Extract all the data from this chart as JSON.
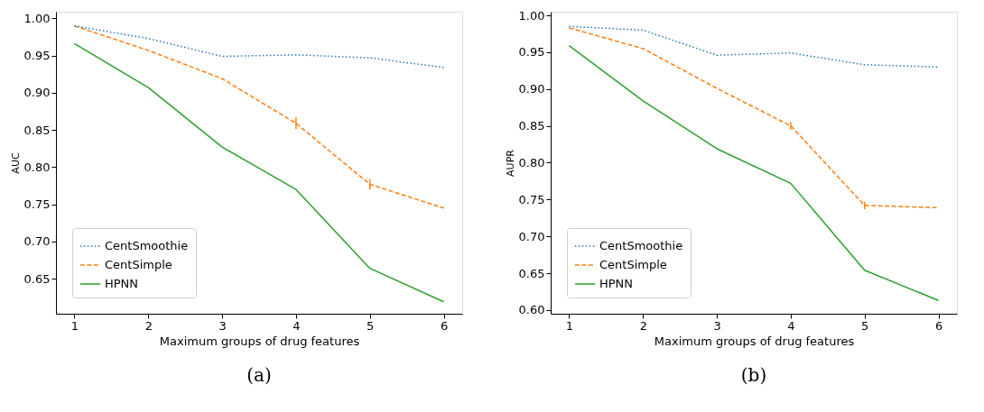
{
  "chart_data": [
    {
      "type": "line",
      "xlabel": "Maximum groups of drug features",
      "ylabel": "AUC",
      "x": [
        1,
        2,
        3,
        4,
        5,
        6
      ],
      "xlim": [
        0.75,
        6.25
      ],
      "xticks": [
        1,
        2,
        3,
        4,
        5,
        6
      ],
      "ylim": [
        0.603,
        1.009
      ],
      "yticks": [
        0.65,
        {
          "value": 0.7,
          "label": "0.70"
        },
        0.75,
        {
          "value": 0.8,
          "label": "0.80"
        },
        0.85,
        {
          "value": 0.9,
          "label": "0.90"
        },
        0.95,
        {
          "value": 1,
          "label": "1.00"
        }
      ],
      "grid": false,
      "legend": "bottom left",
      "marker": "none",
      "annotations": [
        "(a)"
      ],
      "series": [
        {
          "name": "CentSmoothie",
          "color": "#1f77b4",
          "line_style": "dotted",
          "values": [
            0.99,
            0.973,
            0.949,
            0.951,
            0.947,
            0.934
          ]
        },
        {
          "name": "CentSimple",
          "color": "#ff7f0e",
          "line_style": "dashed",
          "values": [
            0.99,
            0.957,
            0.919,
            0.859,
            0.777,
            0.745
          ],
          "errors": [
            null,
            null,
            null,
            0.008,
            0.007,
            null
          ]
        },
        {
          "name": "HPNN",
          "color": "#2ca02c",
          "line_style": "solid",
          "values": [
            0.966,
            0.907,
            0.827,
            0.77,
            0.664,
            0.619
          ]
        }
      ]
    },
    {
      "type": "line",
      "xlabel": "Maximum groups of drug features",
      "ylabel": "AUPR",
      "x": [
        1,
        2,
        3,
        4,
        5,
        6
      ],
      "xlim": [
        0.75,
        6.25
      ],
      "xticks": [
        1,
        2,
        3,
        4,
        5,
        6
      ],
      "ylim": [
        0.595,
        1.005
      ],
      "yticks": [
        {
          "value": 0.6,
          "label": "0.60"
        },
        0.65,
        {
          "value": 0.7,
          "label": "0.70"
        },
        0.75,
        {
          "value": 0.8,
          "label": "0.80"
        },
        0.85,
        {
          "value": 0.9,
          "label": "0.90"
        },
        0.95,
        {
          "value": 1,
          "label": "1.00"
        }
      ],
      "grid": false,
      "legend": "bottom left",
      "marker": "none",
      "annotations": [
        "(b)"
      ],
      "series": [
        {
          "name": "CentSmoothie",
          "color": "#1f77b4",
          "line_style": "dotted",
          "values": [
            0.985,
            0.98,
            0.946,
            0.949,
            0.933,
            0.93
          ]
        },
        {
          "name": "CentSimple",
          "color": "#ff7f0e",
          "line_style": "dashed",
          "values": [
            0.983,
            0.955,
            0.901,
            0.85,
            0.742,
            0.739
          ],
          "errors": [
            null,
            null,
            null,
            0.005,
            0.005,
            null
          ]
        },
        {
          "name": "HPNN",
          "color": "#2ca02c",
          "line_style": "solid",
          "values": [
            0.959,
            0.884,
            0.819,
            0.772,
            0.654,
            0.613
          ]
        }
      ]
    }
  ]
}
